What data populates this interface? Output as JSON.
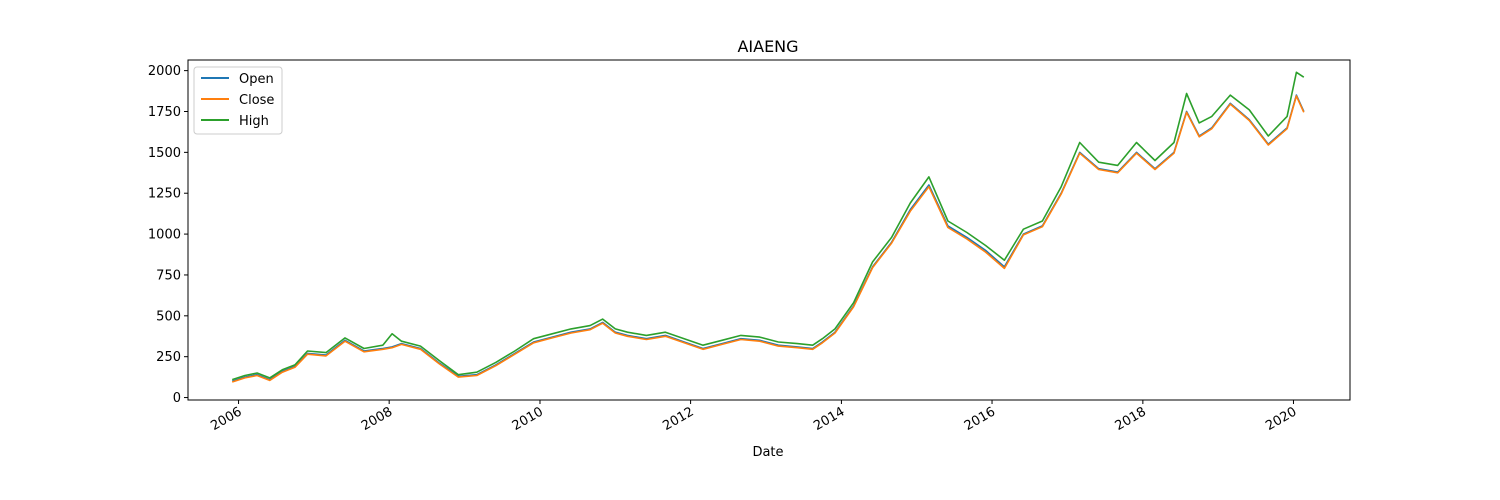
{
  "chart_data": {
    "type": "line",
    "title": "AIAENG",
    "xlabel": "Date",
    "ylabel": "",
    "xlim": [
      "2005-05-01",
      "2020-10-01"
    ],
    "ylim": [
      -15,
      2065
    ],
    "x_ticks": [
      "2006",
      "2008",
      "2010",
      "2012",
      "2014",
      "2016",
      "2018",
      "2020"
    ],
    "y_ticks": [
      "0",
      "250",
      "500",
      "750",
      "1000",
      "1250",
      "1500",
      "1750",
      "2000"
    ],
    "grid": false,
    "legend_position": "top-left",
    "colors": {
      "Open": "#1f77b4",
      "Close": "#ff7f0e",
      "High": "#2ca02c"
    },
    "x": [
      "2005-12-01",
      "2006-02-01",
      "2006-04-01",
      "2006-06-01",
      "2006-08-01",
      "2006-10-01",
      "2006-12-01",
      "2007-03-01",
      "2007-06-01",
      "2007-09-01",
      "2007-12-01",
      "2008-01-15",
      "2008-03-01",
      "2008-06-01",
      "2008-09-01",
      "2008-12-01",
      "2009-03-01",
      "2009-06-01",
      "2009-09-01",
      "2009-12-01",
      "2010-03-01",
      "2010-06-01",
      "2010-09-01",
      "2010-11-01",
      "2011-01-01",
      "2011-03-01",
      "2011-06-01",
      "2011-09-01",
      "2011-12-01",
      "2012-03-01",
      "2012-06-01",
      "2012-09-01",
      "2012-12-01",
      "2013-03-01",
      "2013-06-01",
      "2013-08-15",
      "2013-10-01",
      "2013-12-01",
      "2014-03-01",
      "2014-06-01",
      "2014-09-01",
      "2014-12-01",
      "2015-03-01",
      "2015-06-01",
      "2015-09-01",
      "2015-12-01",
      "2016-03-01",
      "2016-06-01",
      "2016-09-01",
      "2016-12-01",
      "2017-03-01",
      "2017-06-01",
      "2017-09-01",
      "2017-12-01",
      "2018-03-01",
      "2018-06-01",
      "2018-08-01",
      "2018-10-01",
      "2018-12-01",
      "2019-03-01",
      "2019-06-01",
      "2019-09-01",
      "2019-12-01",
      "2020-01-15",
      "2020-02-20"
    ],
    "series": [
      {
        "name": "Open",
        "values": [
          100,
          125,
          140,
          110,
          160,
          190,
          270,
          260,
          350,
          285,
          300,
          310,
          330,
          300,
          210,
          130,
          140,
          200,
          270,
          340,
          370,
          400,
          420,
          460,
          400,
          380,
          360,
          380,
          340,
          300,
          330,
          360,
          350,
          320,
          310,
          300,
          340,
          400,
          560,
          800,
          950,
          1150,
          1300,
          1050,
          980,
          900,
          800,
          1000,
          1050,
          1250,
          1500,
          1400,
          1380,
          1500,
          1400,
          1500,
          1750,
          1600,
          1650,
          1800,
          1700,
          1550,
          1650,
          1850,
          1750
        ]
      },
      {
        "name": "Close",
        "values": [
          95,
          120,
          135,
          105,
          155,
          185,
          265,
          255,
          345,
          280,
          295,
          305,
          325,
          295,
          205,
          125,
          135,
          195,
          265,
          335,
          365,
          395,
          415,
          455,
          395,
          375,
          355,
          375,
          335,
          295,
          325,
          355,
          345,
          315,
          305,
          295,
          335,
          395,
          555,
          795,
          945,
          1140,
          1290,
          1040,
          970,
          890,
          790,
          995,
          1045,
          1245,
          1495,
          1395,
          1375,
          1495,
          1395,
          1495,
          1745,
          1595,
          1645,
          1795,
          1695,
          1545,
          1645,
          1845,
          1745
        ]
      },
      {
        "name": "High",
        "values": [
          110,
          135,
          150,
          120,
          170,
          200,
          285,
          275,
          365,
          300,
          320,
          390,
          345,
          315,
          225,
          140,
          155,
          215,
          285,
          360,
          390,
          420,
          440,
          480,
          420,
          400,
          380,
          400,
          360,
          320,
          350,
          380,
          370,
          340,
          330,
          320,
          360,
          420,
          580,
          830,
          980,
          1190,
          1350,
          1080,
          1010,
          930,
          840,
          1030,
          1080,
          1290,
          1560,
          1440,
          1420,
          1560,
          1450,
          1560,
          1860,
          1680,
          1720,
          1850,
          1760,
          1600,
          1720,
          1990,
          1960
        ]
      }
    ]
  }
}
